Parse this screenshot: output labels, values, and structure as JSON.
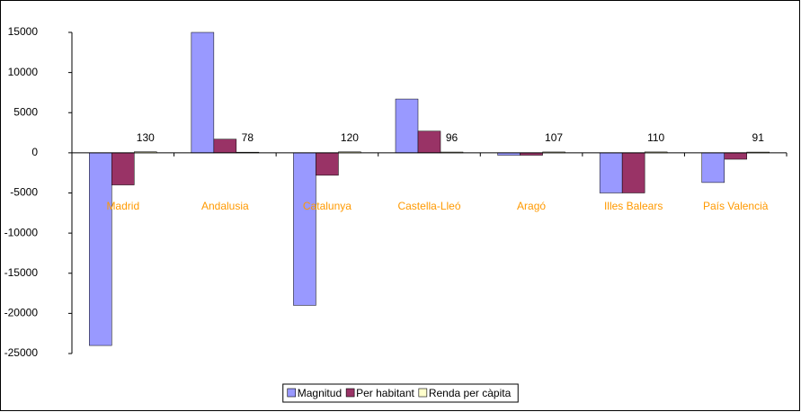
{
  "chart_data": {
    "type": "bar",
    "categories": [
      "Madrid",
      "Andalusia",
      "Catalunya",
      "Castella-Lleó",
      "Aragó",
      "Illes Balears",
      "País Valencià"
    ],
    "series": [
      {
        "name": "Magnitud",
        "color": "#9999ff",
        "values": [
          -24000,
          15000,
          -19000,
          6700,
          -300,
          -5000,
          -3700
        ]
      },
      {
        "name": "Per habitant",
        "color": "#993366",
        "values": [
          -4000,
          1700,
          -2800,
          2700,
          -300,
          -5000,
          -800
        ]
      },
      {
        "name": "Renda per càpita",
        "color": "#ffffcc",
        "values": [
          130,
          78,
          120,
          96,
          107,
          110,
          91
        ]
      }
    ],
    "ylim": [
      -25000,
      15000
    ],
    "yticks": [
      -25000,
      -20000,
      -15000,
      -10000,
      -5000,
      0,
      5000,
      10000,
      15000
    ],
    "category_label_color": "#ff9900",
    "legend": "bottom"
  }
}
